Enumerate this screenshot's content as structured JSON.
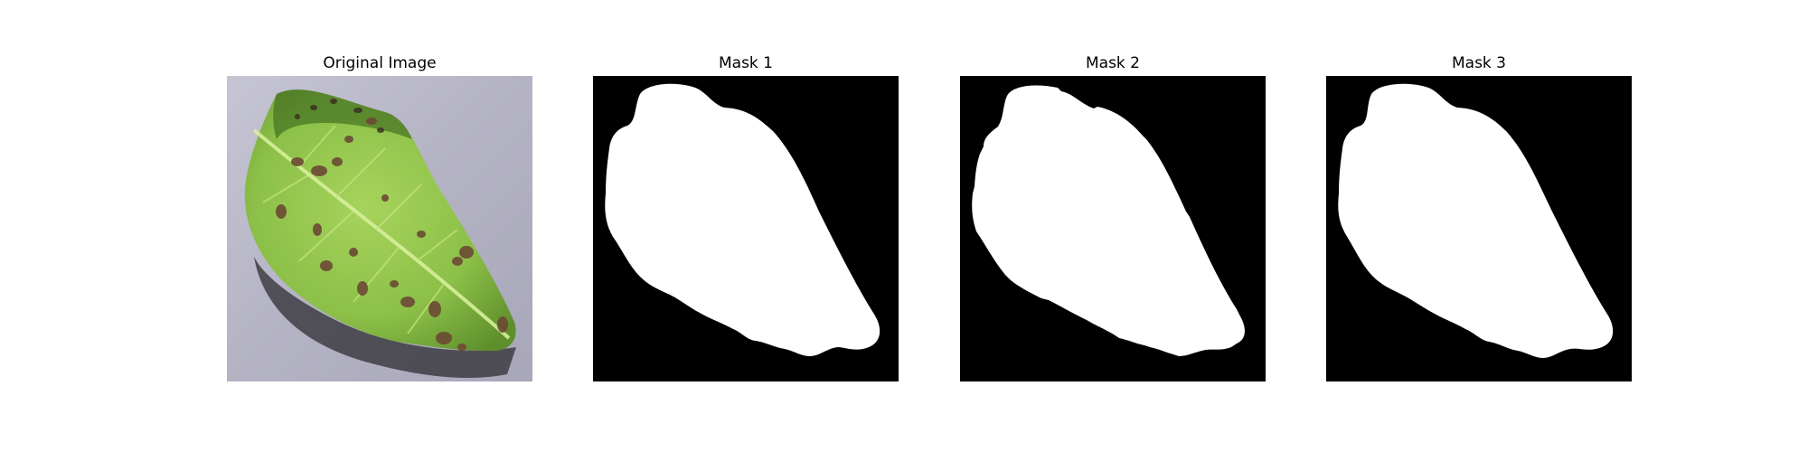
{
  "figure": {
    "panels": [
      {
        "title": "Original Image",
        "content": "leaf photograph with brown disease spots on grey background"
      },
      {
        "title": "Mask 1",
        "content": "binary segmentation mask"
      },
      {
        "title": "Mask 2",
        "content": "binary segmentation mask"
      },
      {
        "title": "Mask 3",
        "content": "binary segmentation mask"
      }
    ]
  },
  "colors": {
    "mask_background": "#000000",
    "mask_foreground": "#ffffff",
    "leaf_green": "#8fc04a",
    "photo_background": "#b9b8c8",
    "spot_brown": "#6b4a34"
  }
}
